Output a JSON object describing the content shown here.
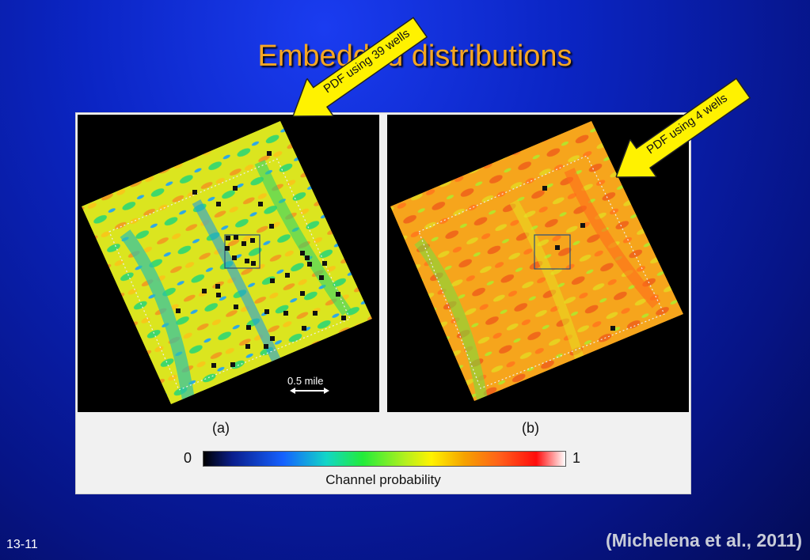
{
  "slide": {
    "title": "Embedded distributions",
    "number": "13-11",
    "citation": "(Michelena et al., 2011)"
  },
  "callouts": {
    "a": "PDF using 39 wells",
    "b": "PDF using 4 wells"
  },
  "figure": {
    "caption_a": "(a)",
    "caption_b": "(b)",
    "scale_bar_label": "0.5 mile",
    "colorbar": {
      "min_label": "0",
      "max_label": "1",
      "title": "Channel probability"
    }
  },
  "colors": {
    "title": "#f5a623",
    "callout_fill": "#fff200",
    "map_a_base": "#d8e61e",
    "map_b_base": "#f6a51c"
  }
}
